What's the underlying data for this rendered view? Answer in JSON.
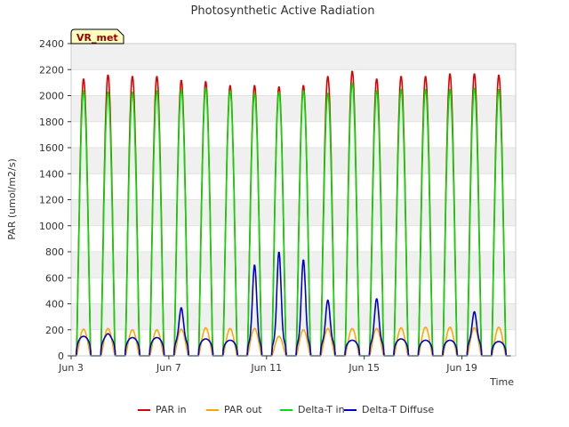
{
  "chart_data": {
    "type": "line",
    "title": "Photosynthetic Active Radiation",
    "xlabel": "Time",
    "ylabel": "PAR (umol/m2/s)",
    "ylim": [
      0,
      2400
    ],
    "xlim_days": [
      3,
      21.2
    ],
    "y_ticks": [
      0,
      200,
      400,
      600,
      800,
      1000,
      1200,
      1400,
      1600,
      1800,
      2000,
      2200,
      2400
    ],
    "x_ticks": [
      {
        "day": 3,
        "label": "Jun 3"
      },
      {
        "day": 7,
        "label": "Jun 7"
      },
      {
        "day": 11,
        "label": "Jun 11"
      },
      {
        "day": 15,
        "label": "Jun 15"
      },
      {
        "day": 19,
        "label": "Jun 19"
      }
    ],
    "site_label": "VR_met",
    "grid": true,
    "legend_position": "bottom-center",
    "days": [
      3,
      4,
      5,
      6,
      7,
      8,
      9,
      10,
      11,
      12,
      13,
      14,
      15,
      16,
      17,
      18,
      19,
      20
    ],
    "series": [
      {
        "name": "PAR in",
        "color": "#dd0000",
        "kind": "par",
        "daily_peak": [
          2130,
          2160,
          2150,
          2150,
          2120,
          2110,
          2080,
          2080,
          2070,
          2080,
          2150,
          2190,
          2130,
          2150,
          2150,
          2170,
          2170,
          2160
        ]
      },
      {
        "name": "PAR out",
        "color": "#ffa500",
        "kind": "out",
        "daily_peak": [
          205,
          210,
          200,
          200,
          205,
          215,
          210,
          210,
          150,
          200,
          210,
          210,
          210,
          215,
          220,
          220,
          215,
          220
        ]
      },
      {
        "name": "Delta-T in",
        "color": "#00dd00",
        "kind": "par",
        "daily_peak": [
          2040,
          2030,
          2030,
          2040,
          2050,
          2060,
          2040,
          2020,
          2030,
          2040,
          2020,
          2100,
          2040,
          2050,
          2050,
          2050,
          2060,
          2050
        ]
      },
      {
        "name": "Delta-T Diffuse",
        "color": "#0000cc",
        "kind": "diffuse",
        "daily_peak": [
          150,
          170,
          140,
          140,
          370,
          130,
          120,
          700,
          800,
          740,
          430,
          120,
          440,
          130,
          120,
          120,
          340,
          110
        ]
      }
    ]
  }
}
